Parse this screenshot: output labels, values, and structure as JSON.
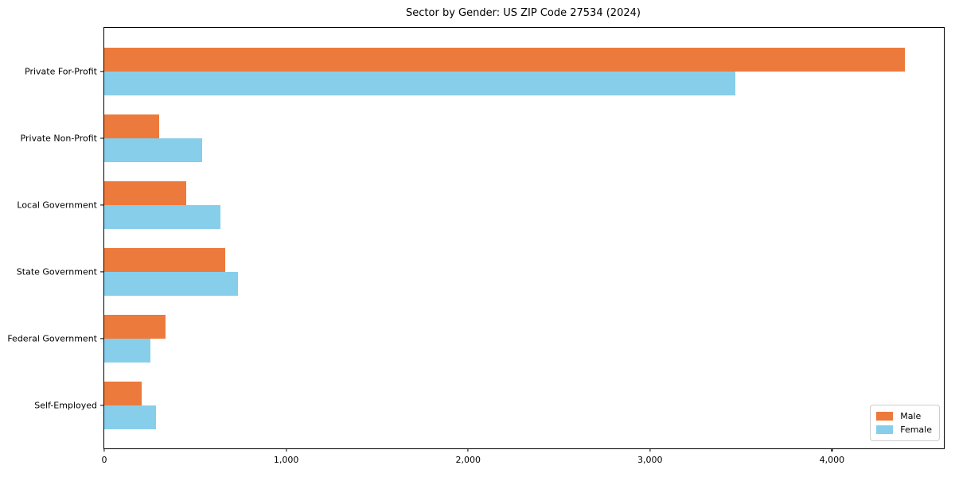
{
  "chart_data": {
    "type": "bar",
    "orientation": "horizontal",
    "title": "Sector by Gender: US ZIP Code 27534 (2024)",
    "categories": [
      "Private For-Profit",
      "Private Non-Profit",
      "Local Government",
      "State Government",
      "Federal Government",
      "Self-Employed"
    ],
    "series": [
      {
        "name": "Male",
        "color": "#ec7a3c",
        "values": [
          4400,
          300,
          450,
          665,
          335,
          205
        ]
      },
      {
        "name": "Female",
        "color": "#87ceeb",
        "values": [
          3470,
          540,
          640,
          735,
          255,
          285
        ]
      }
    ],
    "xlabel": "",
    "ylabel": "",
    "xlim": [
      0,
      4615
    ],
    "x_ticks": [
      {
        "value": 0,
        "label": "0"
      },
      {
        "value": 1000,
        "label": "1,000"
      },
      {
        "value": 2000,
        "label": "2,000"
      },
      {
        "value": 3000,
        "label": "3,000"
      },
      {
        "value": 4000,
        "label": "4,000"
      }
    ],
    "grid": false,
    "legend_position": "lower right"
  }
}
